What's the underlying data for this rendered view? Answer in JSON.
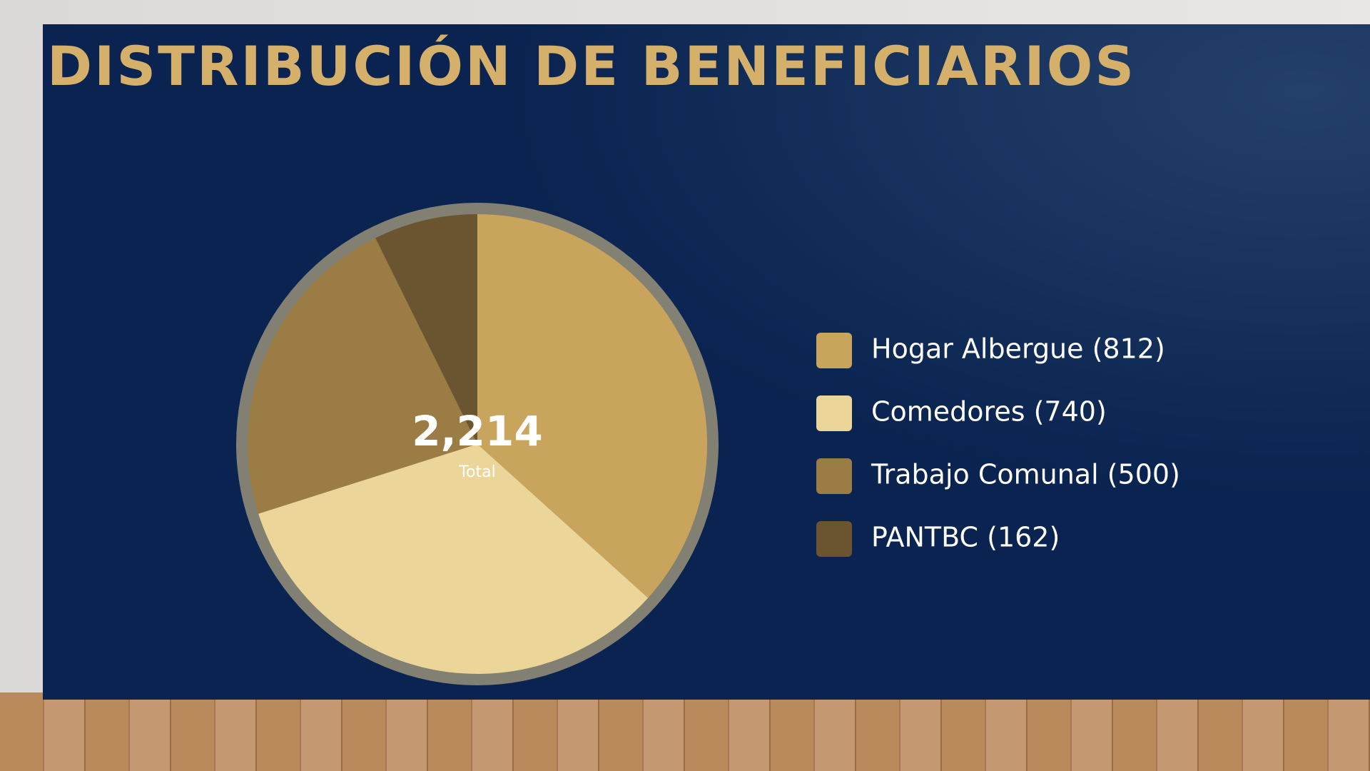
{
  "chart_data": {
    "type": "pie",
    "title": "DISTRIBUCIÓN DE BENEFICIARIOS",
    "categories": [
      "Hogar Albergue (812)",
      "Comedores (740)",
      "Trabajo Comunal (500)",
      "PANTBC (162)"
    ],
    "values": [
      812,
      740,
      500,
      162
    ],
    "colors": [
      "#c9a45c",
      "#ecd598",
      "#9c7c45",
      "#6b5530"
    ],
    "total": {
      "value": 2214,
      "label": "2,214"
    },
    "total_caption": "Total",
    "legend": "right"
  }
}
